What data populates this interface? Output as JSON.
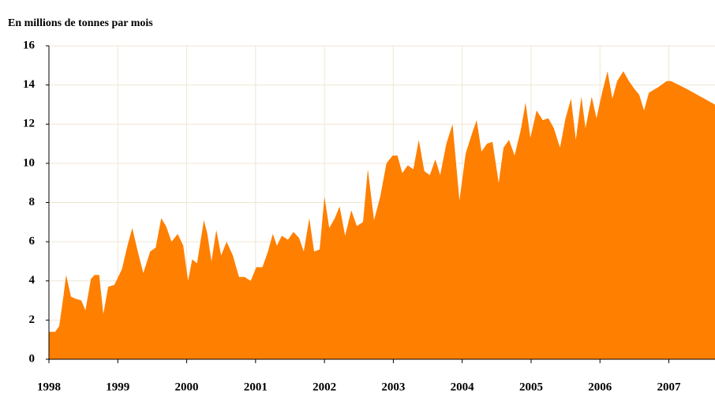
{
  "chart_data": {
    "type": "area",
    "title": "En millions de tonnes par mois",
    "color": "#ff7f00",
    "grid": true,
    "xlim": [
      1998,
      2007.67
    ],
    "xticks": [
      1998,
      1999,
      2000,
      2001,
      2002,
      2003,
      2004,
      2005,
      2006,
      2007
    ],
    "ylim": [
      0,
      16
    ],
    "yticks": [
      0,
      2,
      4,
      6,
      8,
      10,
      12,
      14,
      16
    ],
    "x": [
      1998.0,
      1998.09,
      1998.15,
      1998.21,
      1998.25,
      1998.32,
      1998.38,
      1998.47,
      1998.53,
      1998.61,
      1998.66,
      1998.73,
      1998.79,
      1998.86,
      1998.95,
      1999.06,
      1999.14,
      1999.21,
      1999.29,
      1999.37,
      1999.47,
      1999.55,
      1999.63,
      1999.7,
      1999.78,
      1999.87,
      1999.95,
      2000.02,
      2000.08,
      2000.15,
      2000.25,
      2000.3,
      2000.36,
      2000.43,
      2000.5,
      2000.58,
      2000.67,
      2000.76,
      2000.84,
      2000.93,
      2001.01,
      2001.1,
      2001.18,
      2001.25,
      2001.31,
      2001.38,
      2001.47,
      2001.55,
      2001.63,
      2001.7,
      2001.78,
      2001.85,
      2001.93,
      2002.0,
      2002.07,
      2002.15,
      2002.22,
      2002.3,
      2002.39,
      2002.47,
      2002.56,
      2002.63,
      2002.72,
      2002.81,
      2002.9,
      2002.99,
      2003.06,
      2003.13,
      2003.21,
      2003.29,
      2003.37,
      2003.45,
      2003.53,
      2003.61,
      2003.68,
      2003.77,
      2003.86,
      2003.96,
      2004.05,
      2004.14,
      2004.21,
      2004.28,
      2004.36,
      2004.44,
      2004.53,
      2004.6,
      2004.68,
      2004.76,
      2004.85,
      2004.92,
      2004.99,
      2005.08,
      2005.17,
      2005.25,
      2005.33,
      2005.42,
      2005.5,
      2005.58,
      2005.65,
      2005.73,
      2005.79,
      2005.88,
      2005.95,
      2006.03,
      2006.11,
      2006.18,
      2006.25,
      2006.34,
      2006.42,
      2006.5,
      2006.57,
      2006.64,
      2006.71,
      2006.85,
      2006.97,
      2007.03,
      2007.26,
      2007.67
    ],
    "values": [
      1.4,
      1.4,
      1.7,
      3.2,
      4.3,
      3.2,
      3.1,
      3.0,
      2.5,
      4.1,
      4.3,
      4.3,
      2.3,
      3.7,
      3.8,
      4.6,
      5.8,
      6.7,
      5.5,
      4.4,
      5.5,
      5.7,
      7.2,
      6.8,
      6.0,
      6.4,
      5.8,
      4.0,
      5.1,
      4.9,
      7.1,
      6.4,
      5.0,
      6.6,
      5.3,
      6.0,
      5.3,
      4.2,
      4.2,
      4.0,
      4.7,
      4.7,
      5.5,
      6.4,
      5.8,
      6.3,
      6.1,
      6.5,
      6.2,
      5.5,
      7.2,
      5.5,
      5.6,
      8.3,
      6.7,
      7.2,
      7.8,
      6.3,
      7.6,
      6.8,
      7.0,
      9.7,
      7.1,
      8.3,
      10.0,
      10.4,
      10.4,
      9.5,
      9.9,
      9.7,
      11.2,
      9.6,
      9.4,
      10.2,
      9.4,
      11.0,
      12.0,
      8.1,
      10.5,
      11.5,
      12.2,
      10.6,
      11.0,
      11.1,
      9.0,
      10.8,
      11.2,
      10.4,
      11.7,
      13.1,
      11.3,
      12.7,
      12.2,
      12.3,
      11.8,
      10.8,
      12.3,
      13.3,
      11.2,
      13.4,
      11.8,
      13.4,
      12.3,
      13.6,
      14.7,
      13.3,
      14.2,
      14.7,
      14.2,
      13.8,
      13.5,
      12.7,
      13.6,
      13.9,
      14.2,
      14.2,
      13.8,
      13.0
    ]
  }
}
